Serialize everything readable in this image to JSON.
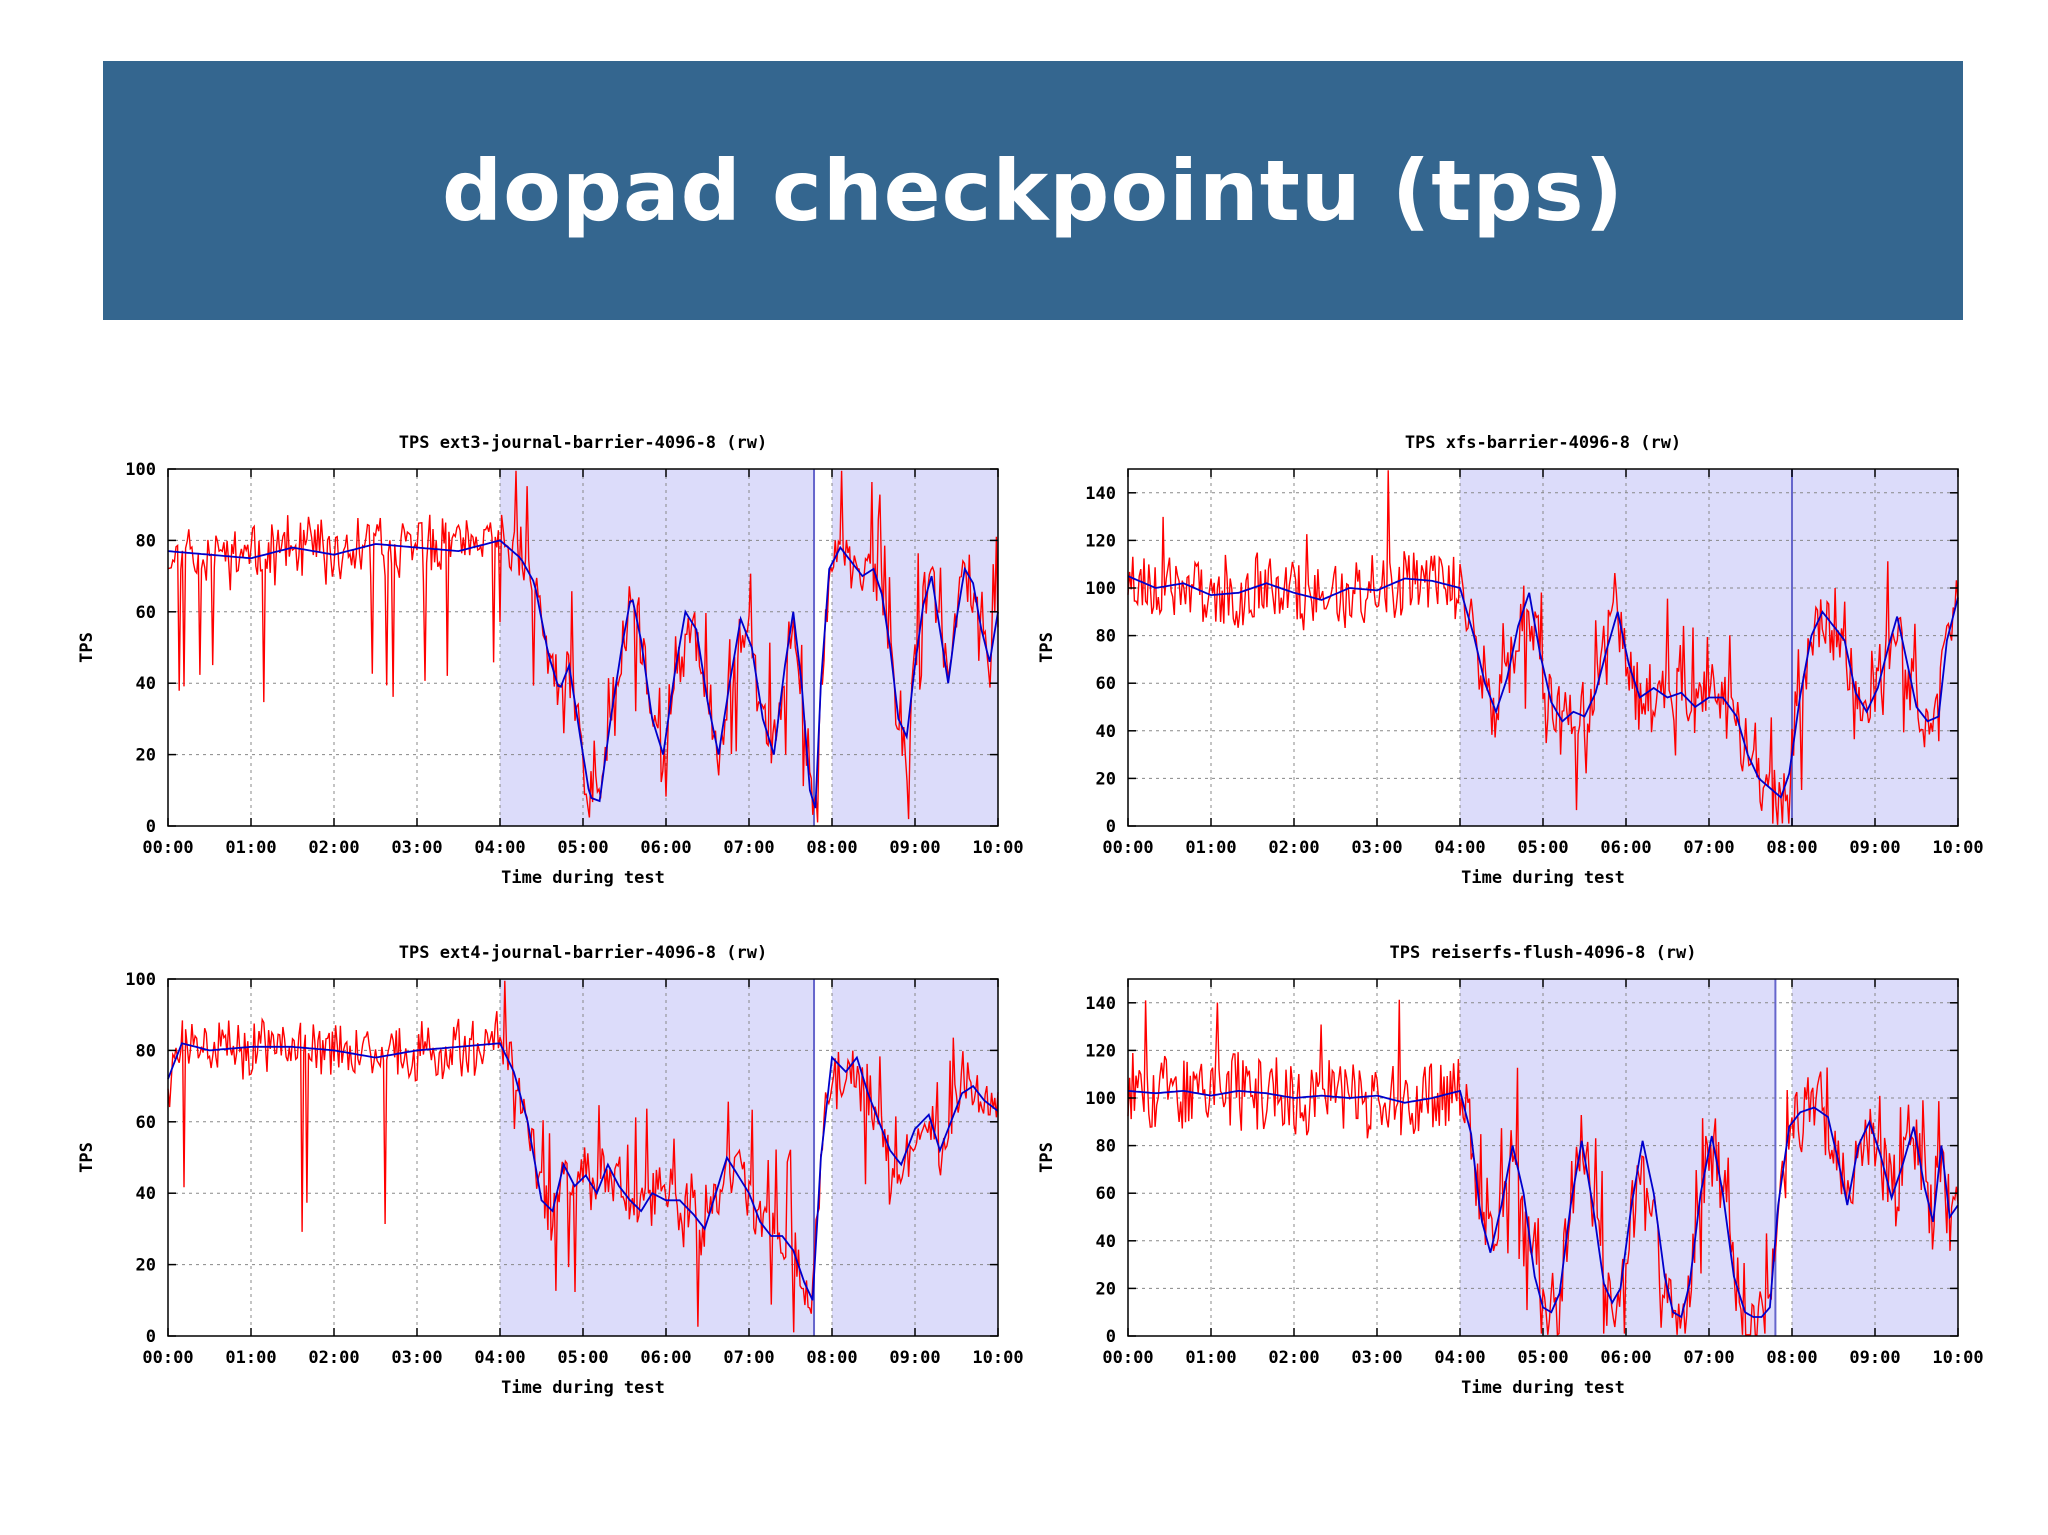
{
  "slide": {
    "title": "dopad checkpointu (tps)"
  },
  "colors": {
    "header_bg": "#34668f",
    "raw_series": "#ff0000",
    "smoothed_series": "#0000cc",
    "checkpoint_region": "#dcdcfa"
  },
  "chart_data": [
    {
      "type": "line",
      "title": "TPS ext3-journal-barrier-4096-8 (rw)",
      "xlabel": "Time during test",
      "ylabel": "TPS",
      "xlim": [
        0,
        600
      ],
      "ylim": [
        0,
        100
      ],
      "x_ticks": [
        "00:00",
        "01:00",
        "02:00",
        "03:00",
        "04:00",
        "05:00",
        "06:00",
        "07:00",
        "08:00",
        "09:00",
        "10:00"
      ],
      "y_ticks": [
        0,
        20,
        40,
        60,
        80,
        100
      ],
      "checkpoint_regions": [
        [
          240,
          467
        ],
        [
          480,
          600
        ]
      ],
      "region_markers": [
        467
      ],
      "series": [
        {
          "role": "raw",
          "color": "#ff0000"
        },
        {
          "role": "smoothed",
          "color": "#0000cc",
          "points": [
            [
              0,
              77
            ],
            [
              30,
              76
            ],
            [
              60,
              75
            ],
            [
              90,
              78
            ],
            [
              120,
              76
            ],
            [
              150,
              79
            ],
            [
              180,
              78
            ],
            [
              210,
              77
            ],
            [
              240,
              80
            ],
            [
              255,
              75
            ],
            [
              265,
              68
            ],
            [
              275,
              48
            ],
            [
              283,
              38
            ],
            [
              290,
              45
            ],
            [
              298,
              25
            ],
            [
              305,
              8
            ],
            [
              312,
              7
            ],
            [
              320,
              30
            ],
            [
              328,
              50
            ],
            [
              335,
              65
            ],
            [
              342,
              52
            ],
            [
              350,
              30
            ],
            [
              358,
              20
            ],
            [
              366,
              42
            ],
            [
              374,
              60
            ],
            [
              382,
              55
            ],
            [
              390,
              35
            ],
            [
              398,
              20
            ],
            [
              406,
              40
            ],
            [
              414,
              58
            ],
            [
              422,
              50
            ],
            [
              430,
              30
            ],
            [
              438,
              20
            ],
            [
              446,
              45
            ],
            [
              452,
              60
            ],
            [
              458,
              40
            ],
            [
              464,
              10
            ],
            [
              468,
              5
            ],
            [
              472,
              40
            ],
            [
              478,
              72
            ],
            [
              486,
              78
            ],
            [
              494,
              74
            ],
            [
              502,
              70
            ],
            [
              510,
              72
            ],
            [
              516,
              65
            ],
            [
              522,
              50
            ],
            [
              528,
              30
            ],
            [
              534,
              25
            ],
            [
              540,
              45
            ],
            [
              546,
              62
            ],
            [
              552,
              70
            ],
            [
              558,
              55
            ],
            [
              564,
              40
            ],
            [
              570,
              58
            ],
            [
              576,
              72
            ],
            [
              582,
              68
            ],
            [
              588,
              55
            ],
            [
              594,
              46
            ],
            [
              600,
              60
            ]
          ]
        }
      ],
      "generator": {
        "seed": 11,
        "noise": 7,
        "dips": 0.05,
        "spike_low": 35
      }
    },
    {
      "type": "line",
      "title": "TPS xfs-barrier-4096-8 (rw)",
      "xlabel": "Time during test",
      "ylabel": "TPS",
      "xlim": [
        0,
        600
      ],
      "ylim": [
        0,
        150
      ],
      "x_ticks": [
        "00:00",
        "01:00",
        "02:00",
        "03:00",
        "04:00",
        "05:00",
        "06:00",
        "07:00",
        "08:00",
        "09:00",
        "10:00"
      ],
      "y_ticks": [
        0,
        20,
        40,
        60,
        80,
        100,
        120,
        140
      ],
      "checkpoint_regions": [
        [
          240,
          600
        ]
      ],
      "region_markers": [
        480
      ],
      "series": [
        {
          "role": "raw",
          "color": "#ff0000"
        },
        {
          "role": "smoothed",
          "color": "#0000cc",
          "points": [
            [
              0,
              105
            ],
            [
              20,
              100
            ],
            [
              40,
              102
            ],
            [
              60,
              97
            ],
            [
              80,
              98
            ],
            [
              100,
              102
            ],
            [
              120,
              98
            ],
            [
              140,
              95
            ],
            [
              160,
              100
            ],
            [
              180,
              99
            ],
            [
              200,
              104
            ],
            [
              220,
              103
            ],
            [
              240,
              100
            ],
            [
              250,
              80
            ],
            [
              258,
              60
            ],
            [
              266,
              48
            ],
            [
              274,
              62
            ],
            [
              282,
              84
            ],
            [
              290,
              98
            ],
            [
              298,
              72
            ],
            [
              306,
              52
            ],
            [
              314,
              44
            ],
            [
              322,
              48
            ],
            [
              330,
              46
            ],
            [
              338,
              56
            ],
            [
              346,
              74
            ],
            [
              354,
              90
            ],
            [
              362,
              68
            ],
            [
              370,
              54
            ],
            [
              380,
              58
            ],
            [
              390,
              54
            ],
            [
              400,
              56
            ],
            [
              410,
              50
            ],
            [
              420,
              54
            ],
            [
              430,
              54
            ],
            [
              440,
              46
            ],
            [
              448,
              30
            ],
            [
              456,
              20
            ],
            [
              464,
              16
            ],
            [
              472,
              12
            ],
            [
              478,
              22
            ],
            [
              486,
              55
            ],
            [
              494,
              80
            ],
            [
              502,
              90
            ],
            [
              510,
              84
            ],
            [
              518,
              78
            ],
            [
              526,
              56
            ],
            [
              534,
              48
            ],
            [
              542,
              58
            ],
            [
              550,
              76
            ],
            [
              556,
              88
            ],
            [
              562,
              72
            ],
            [
              570,
              50
            ],
            [
              578,
              44
            ],
            [
              586,
              46
            ],
            [
              592,
              78
            ],
            [
              600,
              96
            ]
          ]
        }
      ],
      "generator": {
        "seed": 23,
        "noise": 9,
        "dips": 0.03,
        "spike_low": 70
      }
    },
    {
      "type": "line",
      "title": "TPS ext4-journal-barrier-4096-8 (rw)",
      "xlabel": "Time during test",
      "ylabel": "TPS",
      "xlim": [
        0,
        600
      ],
      "ylim": [
        0,
        100
      ],
      "x_ticks": [
        "00:00",
        "01:00",
        "02:00",
        "03:00",
        "04:00",
        "05:00",
        "06:00",
        "07:00",
        "08:00",
        "09:00",
        "10:00"
      ],
      "y_ticks": [
        0,
        20,
        40,
        60,
        80,
        100
      ],
      "checkpoint_regions": [
        [
          240,
          467
        ],
        [
          480,
          600
        ]
      ],
      "region_markers": [
        467
      ],
      "series": [
        {
          "role": "raw",
          "color": "#ff0000"
        },
        {
          "role": "smoothed",
          "color": "#0000cc",
          "points": [
            [
              0,
              72
            ],
            [
              10,
              82
            ],
            [
              30,
              80
            ],
            [
              60,
              81
            ],
            [
              90,
              81
            ],
            [
              120,
              80
            ],
            [
              150,
              78
            ],
            [
              180,
              80
            ],
            [
              210,
              81
            ],
            [
              240,
              82
            ],
            [
              250,
              74
            ],
            [
              260,
              60
            ],
            [
              270,
              38
            ],
            [
              278,
              35
            ],
            [
              286,
              48
            ],
            [
              294,
              42
            ],
            [
              302,
              45
            ],
            [
              310,
              40
            ],
            [
              318,
              48
            ],
            [
              326,
              42
            ],
            [
              334,
              38
            ],
            [
              342,
              35
            ],
            [
              350,
              40
            ],
            [
              360,
              38
            ],
            [
              370,
              38
            ],
            [
              380,
              34
            ],
            [
              388,
              30
            ],
            [
              396,
              40
            ],
            [
              404,
              50
            ],
            [
              412,
              45
            ],
            [
              420,
              40
            ],
            [
              428,
              32
            ],
            [
              436,
              28
            ],
            [
              444,
              28
            ],
            [
              452,
              24
            ],
            [
              460,
              15
            ],
            [
              466,
              10
            ],
            [
              472,
              50
            ],
            [
              480,
              78
            ],
            [
              490,
              74
            ],
            [
              498,
              78
            ],
            [
              506,
              68
            ],
            [
              514,
              60
            ],
            [
              522,
              52
            ],
            [
              530,
              48
            ],
            [
              540,
              58
            ],
            [
              550,
              62
            ],
            [
              558,
              52
            ],
            [
              566,
              60
            ],
            [
              574,
              68
            ],
            [
              582,
              70
            ],
            [
              590,
              66
            ],
            [
              600,
              63
            ]
          ]
        }
      ],
      "generator": {
        "seed": 37,
        "noise": 7,
        "dips": 0.05,
        "spike_low": 30
      }
    },
    {
      "type": "line",
      "title": "TPS reiserfs-flush-4096-8 (rw)",
      "xlabel": "Time during test",
      "ylabel": "TPS",
      "xlim": [
        0,
        600
      ],
      "ylim": [
        0,
        150
      ],
      "x_ticks": [
        "00:00",
        "01:00",
        "02:00",
        "03:00",
        "04:00",
        "05:00",
        "06:00",
        "07:00",
        "08:00",
        "09:00",
        "10:00"
      ],
      "y_ticks": [
        0,
        20,
        40,
        60,
        80,
        100,
        120,
        140
      ],
      "checkpoint_regions": [
        [
          240,
          468
        ],
        [
          480,
          600
        ]
      ],
      "region_markers": [
        468
      ],
      "series": [
        {
          "role": "raw",
          "color": "#ff0000"
        },
        {
          "role": "smoothed",
          "color": "#0000cc",
          "points": [
            [
              0,
              103
            ],
            [
              20,
              102
            ],
            [
              40,
              103
            ],
            [
              60,
              101
            ],
            [
              80,
              103
            ],
            [
              100,
              102
            ],
            [
              120,
              100
            ],
            [
              140,
              101
            ],
            [
              160,
              100
            ],
            [
              180,
              101
            ],
            [
              200,
              98
            ],
            [
              220,
              100
            ],
            [
              240,
              103
            ],
            [
              248,
              85
            ],
            [
              255,
              50
            ],
            [
              262,
              35
            ],
            [
              270,
              55
            ],
            [
              278,
              80
            ],
            [
              286,
              60
            ],
            [
              294,
              25
            ],
            [
              300,
              12
            ],
            [
              306,
              10
            ],
            [
              312,
              18
            ],
            [
              320,
              55
            ],
            [
              328,
              82
            ],
            [
              336,
              55
            ],
            [
              344,
              22
            ],
            [
              350,
              14
            ],
            [
              356,
              20
            ],
            [
              364,
              55
            ],
            [
              372,
              82
            ],
            [
              380,
              60
            ],
            [
              388,
              25
            ],
            [
              394,
              10
            ],
            [
              400,
              8
            ],
            [
              406,
              22
            ],
            [
              414,
              60
            ],
            [
              422,
              84
            ],
            [
              430,
              60
            ],
            [
              438,
              25
            ],
            [
              446,
              10
            ],
            [
              452,
              8
            ],
            [
              458,
              8
            ],
            [
              464,
              12
            ],
            [
              470,
              55
            ],
            [
              478,
              88
            ],
            [
              486,
              94
            ],
            [
              496,
              96
            ],
            [
              506,
              92
            ],
            [
              514,
              72
            ],
            [
              520,
              55
            ],
            [
              528,
              80
            ],
            [
              536,
              90
            ],
            [
              544,
              76
            ],
            [
              552,
              58
            ],
            [
              560,
              72
            ],
            [
              568,
              88
            ],
            [
              576,
              62
            ],
            [
              582,
              48
            ],
            [
              588,
              80
            ],
            [
              594,
              50
            ],
            [
              600,
              55
            ]
          ]
        }
      ],
      "generator": {
        "seed": 53,
        "noise": 10,
        "dips": 0.06,
        "spike_low": 70
      }
    }
  ]
}
